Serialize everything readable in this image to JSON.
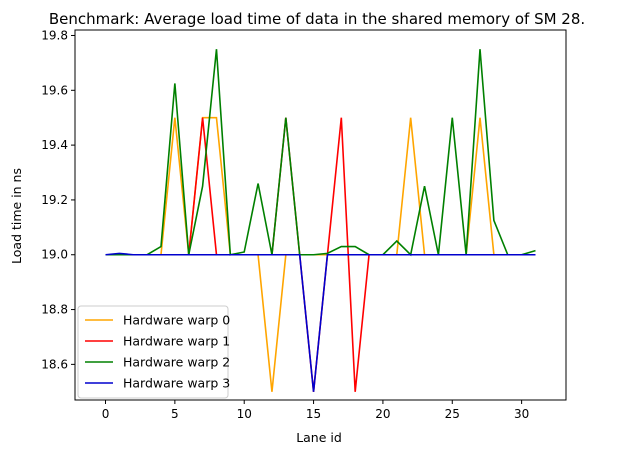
{
  "chart_data": {
    "type": "line",
    "title": "Benchmark: Average load time of data in the shared memory of SM 28.",
    "xlabel": "Lane id",
    "ylabel": "Load time in ns",
    "xlim": [
      -2.2,
      33.2
    ],
    "ylim": [
      18.47,
      19.82
    ],
    "xticks": [
      0,
      5,
      10,
      15,
      20,
      25,
      30
    ],
    "yticks": [
      18.6,
      18.8,
      19.0,
      19.2,
      19.4,
      19.6,
      19.8
    ],
    "ytick_labels": [
      "18.6",
      "18.8",
      "19.0",
      "19.2",
      "19.4",
      "19.6",
      "19.8"
    ],
    "grid": false,
    "legend_position": "lower-left",
    "x": [
      0,
      1,
      2,
      3,
      4,
      5,
      6,
      7,
      8,
      9,
      10,
      11,
      12,
      13,
      14,
      15,
      16,
      17,
      18,
      19,
      20,
      21,
      22,
      23,
      24,
      25,
      26,
      27,
      28,
      29,
      30,
      31
    ],
    "series": [
      {
        "name": "Hardware warp 0",
        "color": "#FFA500",
        "values": [
          19.0,
          19.0,
          19.0,
          19.0,
          19.0,
          19.5,
          19.0,
          19.5,
          19.5,
          19.0,
          19.0,
          19.0,
          18.5,
          19.0,
          19.0,
          19.0,
          19.0,
          19.0,
          19.0,
          19.0,
          19.0,
          19.0,
          19.5,
          19.0,
          19.0,
          19.0,
          19.0,
          19.5,
          19.0,
          19.0,
          19.0,
          19.0
        ]
      },
      {
        "name": "Hardware warp 1",
        "color": "#FF0000",
        "values": [
          19.0,
          19.0,
          19.0,
          19.0,
          19.0,
          19.0,
          19.0,
          19.5,
          19.0,
          19.0,
          19.0,
          19.0,
          19.0,
          19.5,
          19.0,
          18.5,
          19.0,
          19.5,
          18.5,
          19.0,
          19.0,
          19.0,
          19.0,
          19.0,
          19.0,
          19.0,
          19.0,
          19.0,
          19.0,
          19.0,
          19.0,
          19.0
        ]
      },
      {
        "name": "Hardware warp 2",
        "color": "#008000",
        "values": [
          19.0,
          19.0,
          19.0,
          19.0,
          19.03,
          19.625,
          19.0,
          19.25,
          19.75,
          19.0,
          19.01,
          19.26,
          19.0,
          19.5,
          19.0,
          19.0,
          19.005,
          19.03,
          19.03,
          19.0,
          19.0,
          19.05,
          19.0,
          19.25,
          19.0,
          19.5,
          19.0,
          19.75,
          19.125,
          19.0,
          19.0,
          19.015
        ]
      },
      {
        "name": "Hardware warp 3",
        "color": "#0000CD",
        "values": [
          19.0,
          19.005,
          19.0,
          19.0,
          19.0,
          19.0,
          19.0,
          19.0,
          19.0,
          19.0,
          19.0,
          19.0,
          19.0,
          19.0,
          19.0,
          18.5,
          19.0,
          19.0,
          19.0,
          19.0,
          19.0,
          19.0,
          19.0,
          19.0,
          19.0,
          19.0,
          19.0,
          19.0,
          19.0,
          19.0,
          19.0,
          19.0
        ]
      }
    ]
  }
}
